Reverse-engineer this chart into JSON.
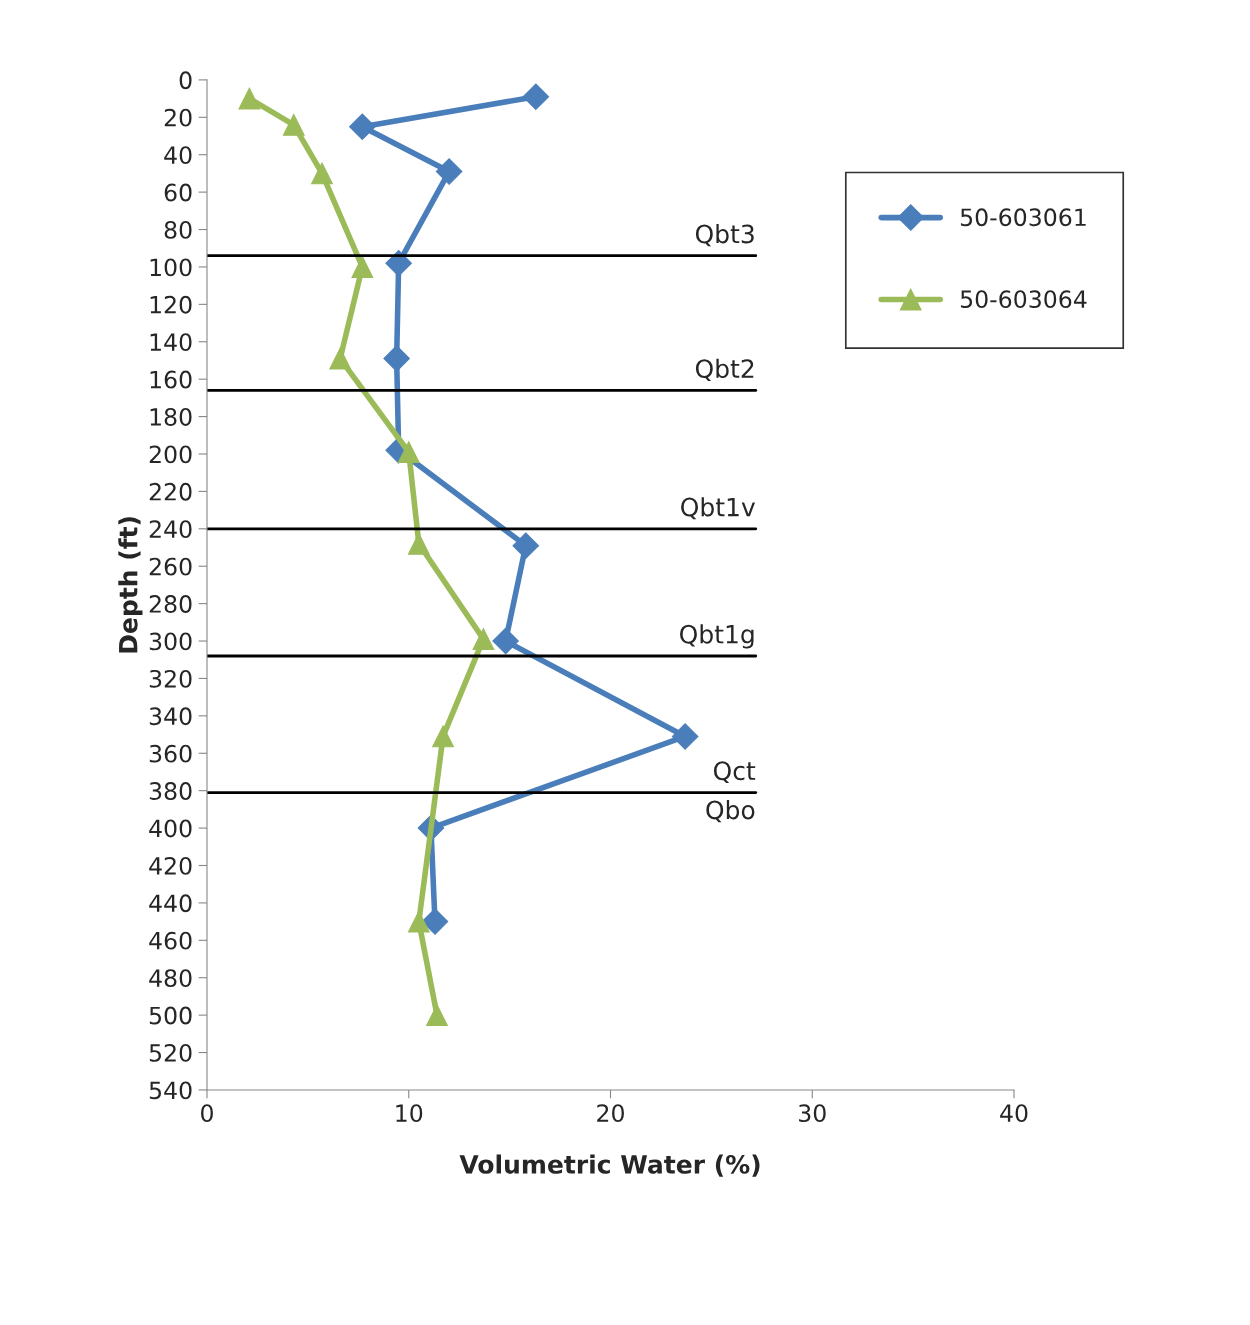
{
  "chart_data": {
    "type": "line",
    "orientation": "horizontal",
    "xlabel": "Volumetric Water (%)",
    "ylabel": "Depth (ft)",
    "xlim": [
      0,
      40
    ],
    "xticks": [
      0,
      10,
      20,
      30,
      40
    ],
    "ylim": [
      540,
      0
    ],
    "yticks": [
      0,
      20,
      40,
      60,
      80,
      100,
      120,
      140,
      160,
      180,
      200,
      220,
      240,
      260,
      280,
      300,
      320,
      340,
      360,
      380,
      400,
      420,
      440,
      460,
      480,
      500,
      520,
      540
    ],
    "grid": false,
    "legend": "top right",
    "line_style": "solid",
    "series": [
      {
        "name": "50-603061",
        "color": "#4a7ebb",
        "marker": "diamond",
        "x": [
          9,
          25,
          49,
          98,
          149,
          198,
          249,
          300,
          351,
          400,
          450
        ],
        "values": [
          16.3,
          7.7,
          12.0,
          9.5,
          9.4,
          9.5,
          15.8,
          14.8,
          23.7,
          11.1,
          11.3
        ]
      },
      {
        "name": "50-603064",
        "color": "#9bbb59",
        "marker": "triangle",
        "x": [
          10,
          24,
          50,
          100,
          149,
          199,
          248,
          299,
          351,
          450,
          500
        ],
        "values": [
          2.1,
          4.3,
          5.7,
          7.7,
          6.6,
          10.0,
          10.5,
          13.7,
          11.7,
          10.5,
          11.4
        ]
      }
    ],
    "ref_lines": [
      {
        "axis": "y",
        "value": 94,
        "label": "Qbt3",
        "color": "#000000"
      },
      {
        "axis": "y",
        "value": 166,
        "label": "Qbt2",
        "color": "#000000"
      },
      {
        "axis": "y",
        "value": 240,
        "label": "Qbt1v",
        "color": "#000000"
      },
      {
        "axis": "y",
        "value": 308,
        "label": "Qbt1g",
        "color": "#000000"
      },
      {
        "axis": "y",
        "value": 381,
        "label": "Qct",
        "color": "#000000"
      }
    ],
    "annotations": [
      "Qbo"
    ]
  }
}
